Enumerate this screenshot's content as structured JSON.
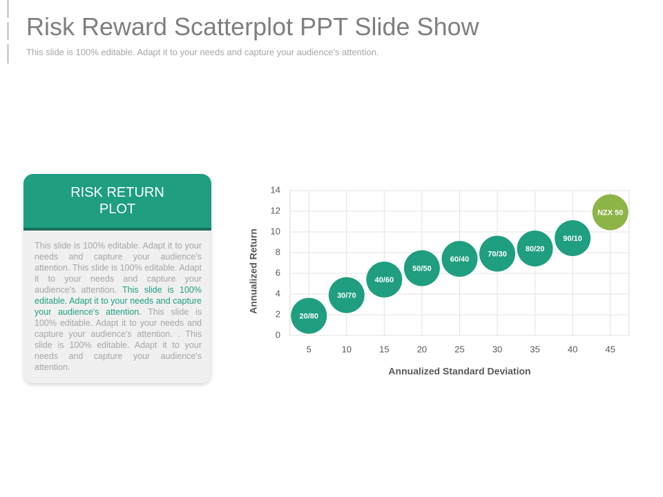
{
  "header": {
    "title": "Risk Reward Scatterplot PPT Slide Show",
    "subtitle": "This slide is 100% editable. Adapt it to your needs and capture your audience's attention."
  },
  "panel": {
    "heading": "RISK RETURN PLOT",
    "body": [
      "This slide is 100% editable. Adapt it to your needs and capture your audience's attention. This slide is 100% editable. Adapt it to your needs and capture your audience's attention. ",
      "This slide is 100% editable. Adapt it to your needs and capture your audience's attention.",
      " This slide is 100% editable. Adapt it to your needs and capture your audience's attention. . This slide is 100% editable. Adapt it to your needs and capture your audience's attention."
    ]
  },
  "chart_data": {
    "type": "scatter",
    "xlabel": "Annualized Standard Deviation",
    "ylabel": "Annualized Return",
    "x": [
      5,
      10,
      15,
      20,
      25,
      30,
      35,
      40,
      45
    ],
    "series": [
      {
        "values": [
          1.9,
          3.9,
          5.4,
          6.5,
          7.4,
          7.9,
          8.4,
          9.4,
          11.9
        ],
        "point_labels": [
          "20/80",
          "30/70",
          "40/60",
          "50/50",
          "60/40",
          "70/30",
          "80/20",
          "90/10",
          "NZX 50"
        ],
        "colors": [
          "#1f9e80",
          "#1f9e80",
          "#1f9e80",
          "#1f9e80",
          "#1f9e80",
          "#1f9e80",
          "#1f9e80",
          "#1f9e80",
          "#8db446"
        ]
      }
    ],
    "xlim": [
      2.5,
      47.5
    ],
    "xticks": [
      5,
      10,
      15,
      20,
      25,
      30,
      35,
      40,
      45
    ],
    "ylim": [
      0,
      14
    ],
    "yticks": [
      0,
      2,
      4,
      6,
      8,
      10,
      12,
      14
    ],
    "grid": true
  }
}
